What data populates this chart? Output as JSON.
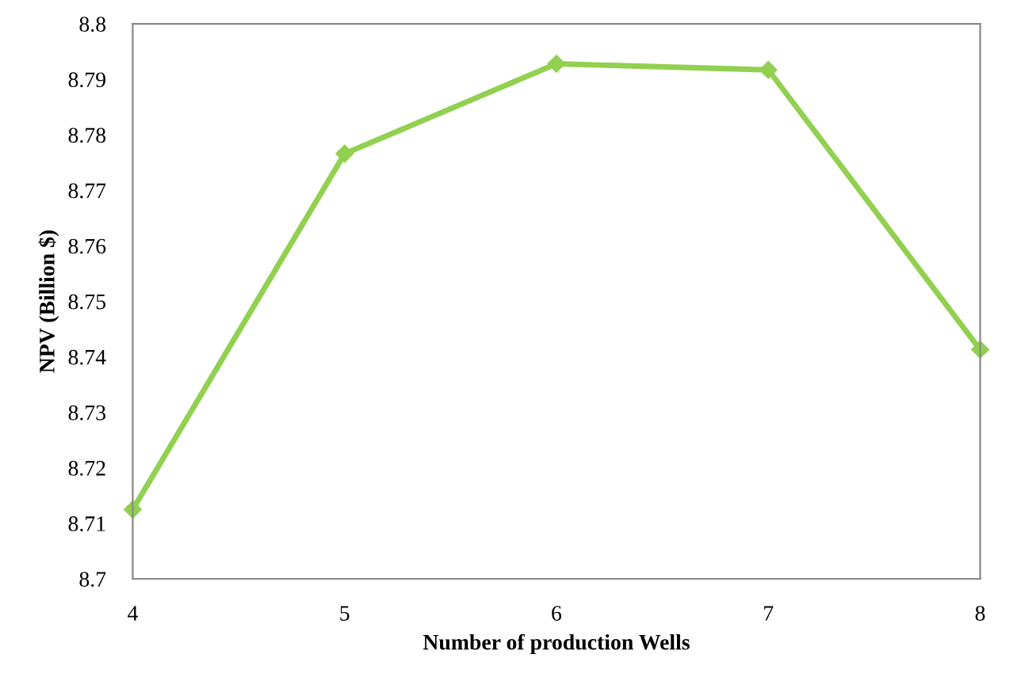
{
  "chart_data": {
    "type": "line",
    "xlabel": "Number of production Wells",
    "ylabel": "NPV (Billion $)",
    "x": [
      4,
      5,
      6,
      7,
      8
    ],
    "series": [
      {
        "color": "#92d050",
        "values": [
          8.7125,
          8.7766,
          8.7928,
          8.7917,
          8.7413
        ]
      }
    ],
    "xlim": [
      4,
      8
    ],
    "xticks": [
      4,
      5,
      6,
      7,
      8
    ],
    "ylim": [
      8.7,
      8.8
    ],
    "yticks": [
      {
        "value": 8.7,
        "label": "8.7"
      },
      {
        "value": 8.71,
        "label": "8.71"
      },
      {
        "value": 8.72,
        "label": "8.72"
      },
      {
        "value": 8.73,
        "label": "8.73"
      },
      {
        "value": 8.74,
        "label": "8.74"
      },
      {
        "value": 8.75,
        "label": "8.75"
      },
      {
        "value": 8.76,
        "label": "8.76"
      },
      {
        "value": 8.77,
        "label": "8.77"
      },
      {
        "value": 8.78,
        "label": "8.78"
      },
      {
        "value": 8.79,
        "label": "8.79"
      },
      {
        "value": 8.8,
        "label": "8.8"
      }
    ],
    "marker": "diamond",
    "line_style": "solid",
    "grid": false,
    "legend": false
  }
}
